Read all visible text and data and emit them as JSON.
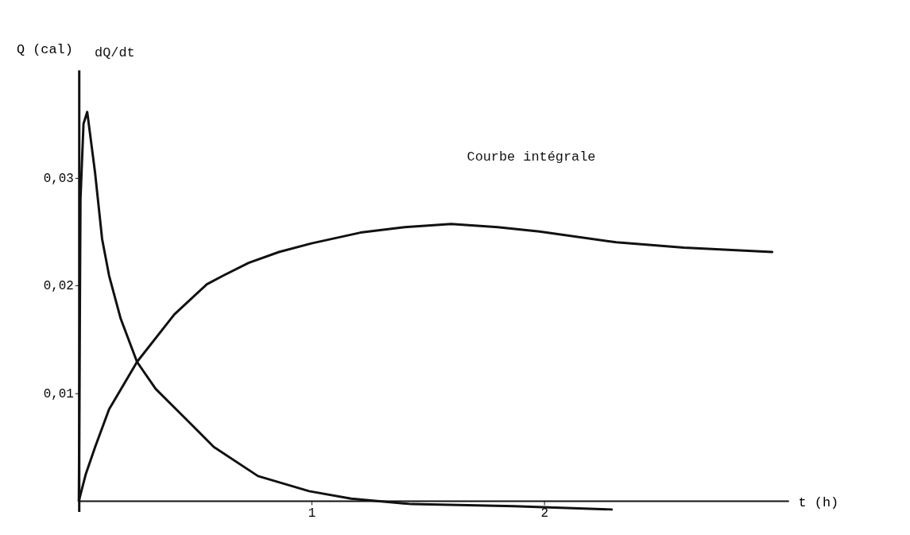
{
  "chart_data": {
    "type": "line",
    "xlabel": "t (h)",
    "ylabel": "Q (cal)",
    "annotations": [
      "dQ/dt"
    ],
    "xlim": [
      0,
      3.05
    ],
    "ylim": [
      -0.001,
      0.04
    ],
    "xticks": [
      1,
      2
    ],
    "yticks": [
      {
        "value": 0.01,
        "label": "0,01"
      },
      {
        "value": 0.02,
        "label": "0,02"
      },
      {
        "value": 0.03,
        "label": "0,03"
      }
    ],
    "grid": false,
    "marker": "none",
    "line_style": "solid",
    "series": [
      {
        "name": "Courbe intégrale",
        "color": "#111111",
        "x": [
          0,
          0.03,
          0.07,
          0.13,
          0.25,
          0.41,
          0.55,
          0.62,
          0.73,
          0.86,
          1.0,
          1.21,
          1.4,
          1.6,
          1.8,
          1.98,
          2.31,
          2.6,
          2.98
        ],
        "values": [
          0,
          0.0025,
          0.005,
          0.0085,
          0.0129,
          0.0173,
          0.0201,
          0.0209,
          0.0221,
          0.0231,
          0.0239,
          0.0249,
          0.0254,
          0.0257,
          0.0254,
          0.025,
          0.024,
          0.0235,
          0.0231
        ]
      },
      {
        "color": "#111111",
        "x": [
          0,
          0.007,
          0.02,
          0.036,
          0.07,
          0.1,
          0.13,
          0.18,
          0.25,
          0.33,
          0.46,
          0.58,
          0.77,
          0.99,
          1.17,
          1.43,
          1.87,
          2.29
        ],
        "values": [
          0,
          0.028,
          0.035,
          0.0361,
          0.0304,
          0.0243,
          0.0209,
          0.0169,
          0.0129,
          0.0104,
          0.0076,
          0.005,
          0.0023,
          0.0009,
          0.0002,
          -0.0003,
          -0.0005,
          -0.0008
        ]
      }
    ]
  }
}
